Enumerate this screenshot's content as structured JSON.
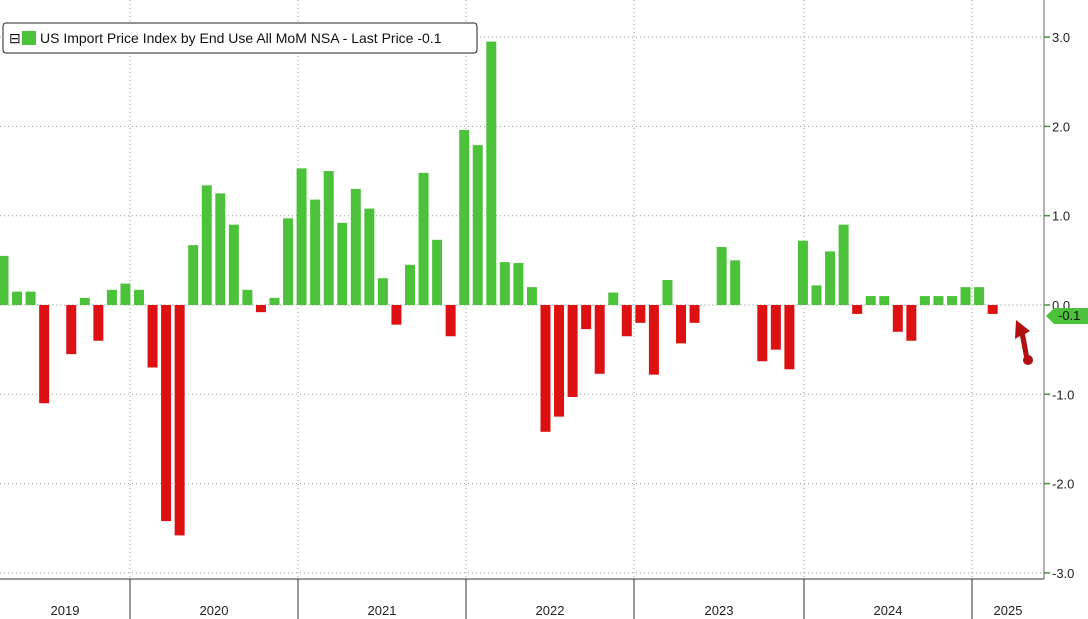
{
  "chart_data": {
    "type": "bar",
    "legend": {
      "label": "US Import Price Index by End Use All MoM NSA - Last Price -0.1",
      "toggle": "⊟",
      "placement": "top-left"
    },
    "last_value_label": "-0.1",
    "y_ticks": [
      "3.0",
      "2.0",
      "1.0",
      "0.0",
      "-1.0",
      "-2.0",
      "-3.0"
    ],
    "ylim": [
      -3.0,
      3.0
    ],
    "years": [
      "2019",
      "2020",
      "2021",
      "2022",
      "2023",
      "2024",
      "2025"
    ],
    "grid": true,
    "positive_color": "#4cc23a",
    "negative_color": "#dd1111",
    "annotation": "red arrow pointing to latest bar",
    "series": [
      {
        "values": [
          0.55,
          0.15,
          0.15,
          -1.1,
          0.0,
          -0.55,
          0.08,
          -0.4,
          0.17,
          0.24,
          0.17,
          -0.7,
          -2.42,
          -2.58,
          0.67,
          1.34,
          1.25,
          0.9,
          0.17,
          -0.08,
          0.08,
          0.97,
          1.53,
          1.18,
          1.5,
          0.92,
          1.3,
          1.08,
          0.3,
          -0.22,
          0.45,
          1.48,
          0.73,
          -0.35,
          1.96,
          1.79,
          2.95,
          0.48,
          0.47,
          0.2,
          -1.42,
          -1.25,
          -1.03,
          -0.27,
          -0.77,
          0.14,
          -0.35,
          -0.2,
          -0.78,
          0.28,
          -0.43,
          -0.2,
          0.0,
          0.65,
          0.5,
          0.0,
          -0.63,
          -0.5,
          -0.72,
          0.72,
          0.22,
          0.6,
          0.9,
          -0.1,
          0.1,
          0.1,
          -0.3,
          -0.4,
          0.1,
          0.1,
          0.1,
          0.2,
          0.2,
          -0.1
        ]
      }
    ]
  }
}
